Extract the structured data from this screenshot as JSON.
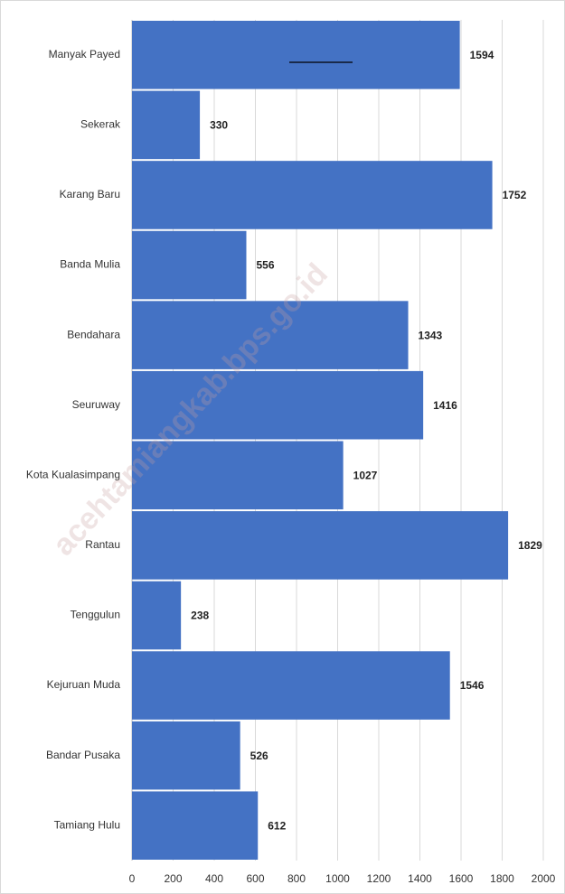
{
  "chart_data": {
    "type": "barh",
    "categories": [
      "Manyak Payed",
      "Sekerak",
      "Karang Baru",
      "Banda Mulia",
      "Bendahara",
      "Seuruway",
      "Kota Kualasimpang",
      "Rantau",
      "Tenggulun",
      "Kejuruan Muda",
      "Bandar Pusaka",
      "Tamiang Hulu"
    ],
    "values": [
      1594,
      330,
      1752,
      556,
      1343,
      1416,
      1027,
      1829,
      238,
      1546,
      526,
      612
    ],
    "color": "#4472c4",
    "xlim": [
      0,
      2000
    ],
    "xticks": [
      0,
      200,
      400,
      600,
      800,
      1000,
      1200,
      1400,
      1600,
      1800,
      2000
    ],
    "grid": true,
    "watermark": "acehtamiangkab.bps.go.id"
  }
}
